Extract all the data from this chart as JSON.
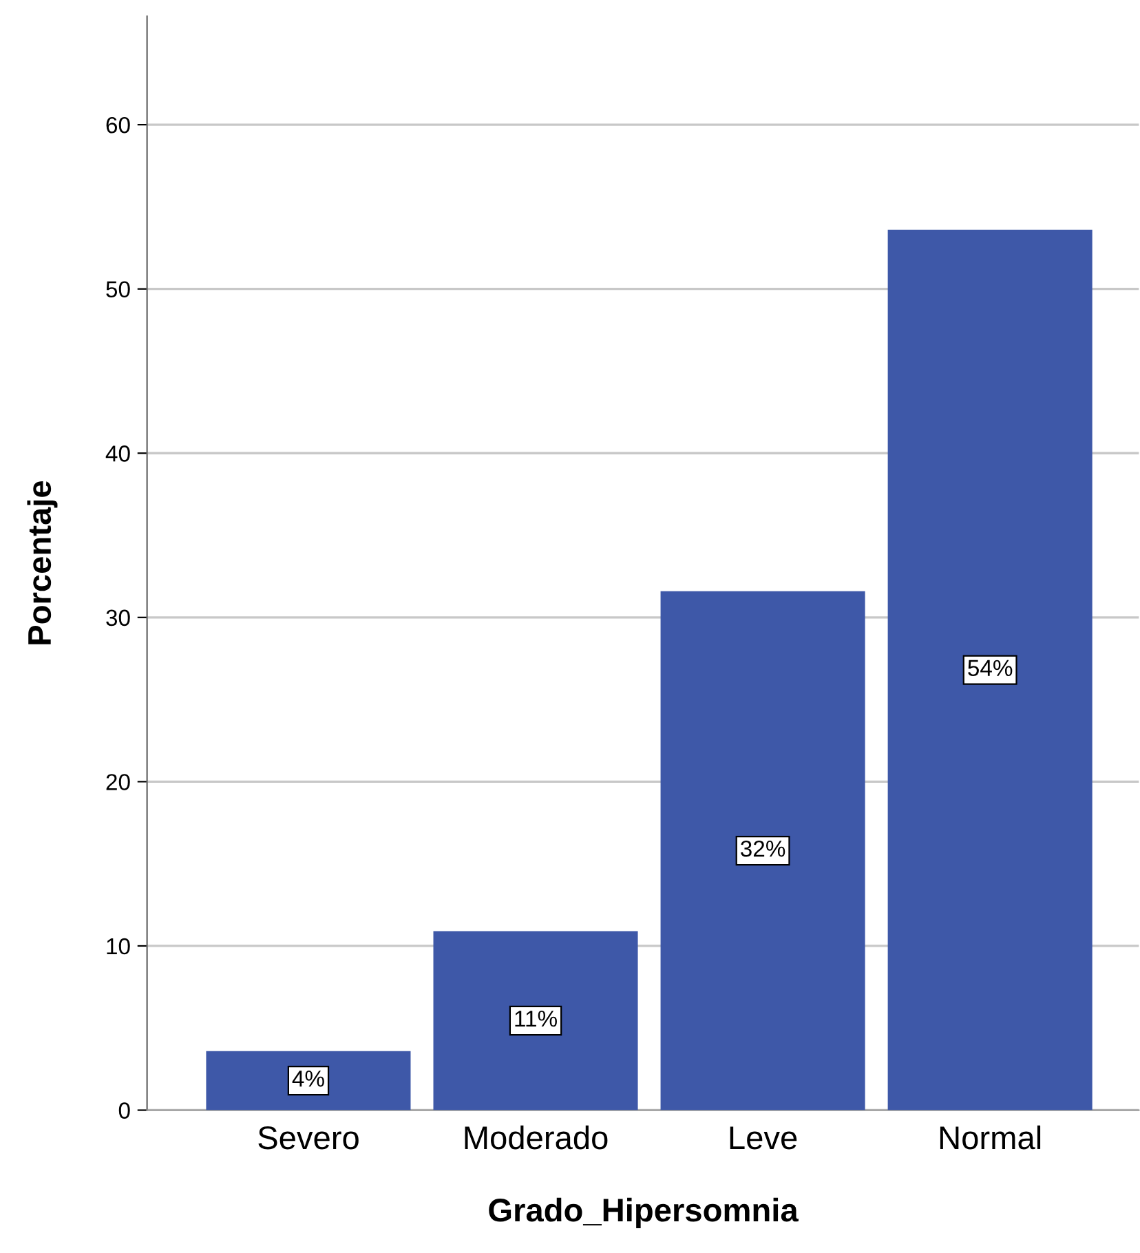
{
  "chart_data": {
    "type": "bar",
    "xlabel": "Grado_Hipersomnia",
    "ylabel": "Porcentaje",
    "categories": [
      "Severo",
      "Moderado",
      "Leve",
      "Normal"
    ],
    "values": [
      3.6,
      10.9,
      31.6,
      53.6
    ],
    "value_labels": [
      "4%",
      "11%",
      "32%",
      "54%"
    ],
    "color": "#3e58a8",
    "ylim": [
      0,
      66.6
    ],
    "yticks": [
      0,
      10,
      20,
      30,
      40,
      50,
      60
    ],
    "grid": "y",
    "legend": false
  }
}
